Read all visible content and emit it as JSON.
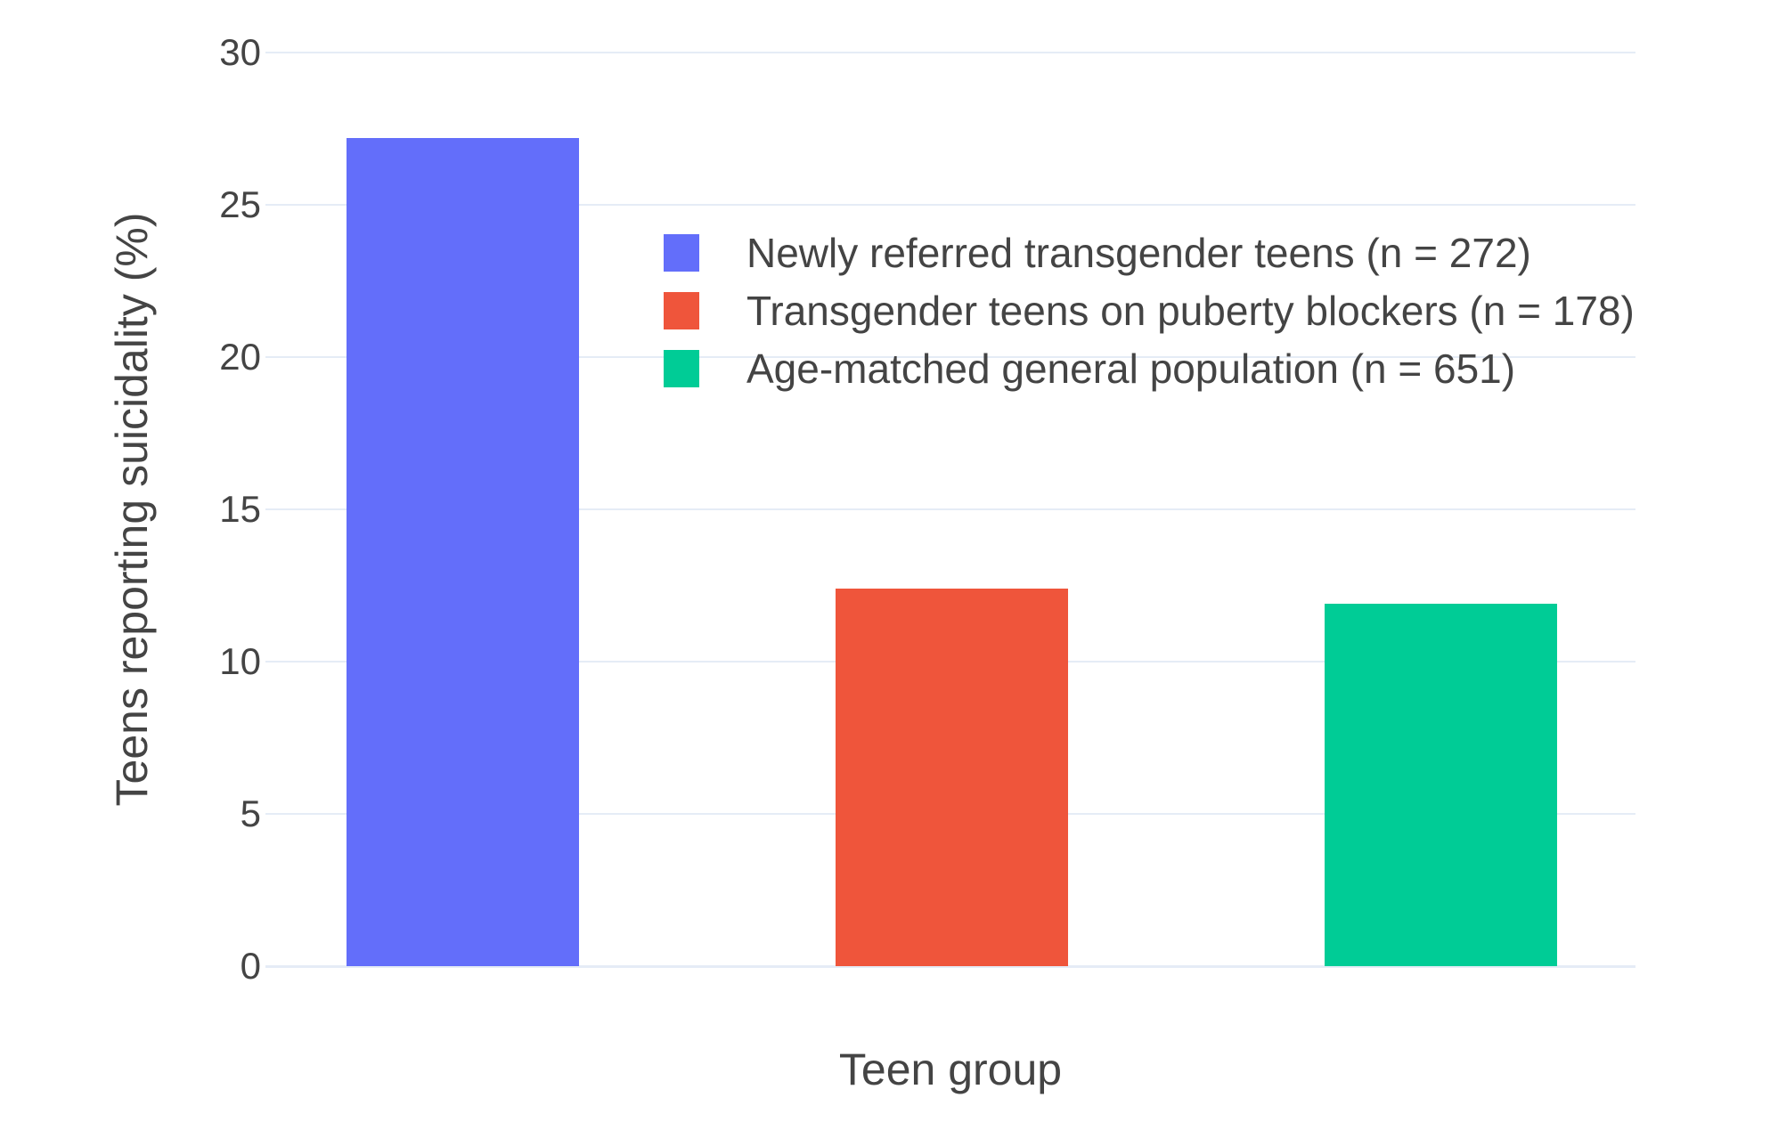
{
  "chart_data": {
    "type": "bar",
    "xlabel": "Teen group",
    "ylabel": "Teens reporting suicidality (%)",
    "ylim": [
      0,
      30
    ],
    "yticks": [
      0,
      5,
      10,
      15,
      20,
      25,
      30
    ],
    "grid": true,
    "legend_position": "inside-top-center",
    "x_category_labels_visible": false,
    "series": [
      {
        "name": "Newly referred transgender teens (n = 272)",
        "value": 27.2,
        "color": "#636EFA"
      },
      {
        "name": "Transgender teens on puberty blockers (n = 178)",
        "value": 12.4,
        "color": "#EF553B"
      },
      {
        "name": "Age-matched general population (n = 651)",
        "value": 11.9,
        "color": "#00CC96"
      }
    ]
  },
  "colors": {
    "background": "#FFFFFF",
    "gridline": "#E5ECF6",
    "text": "#444444"
  }
}
